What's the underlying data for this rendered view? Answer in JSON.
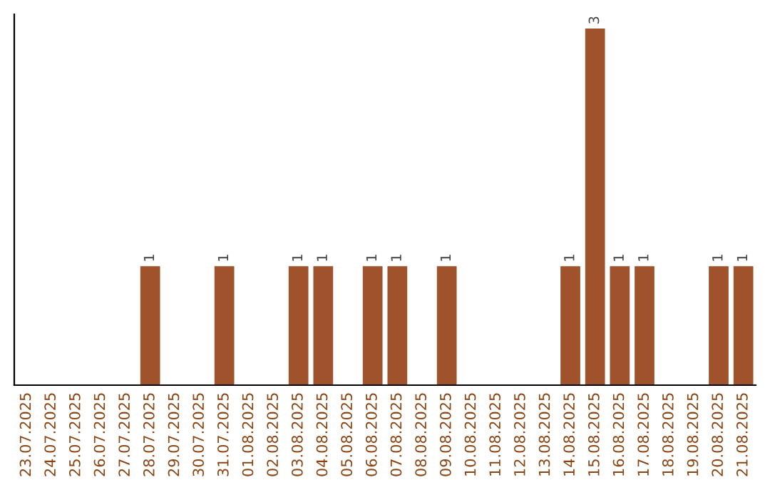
{
  "chart_data": {
    "type": "bar",
    "categories": [
      "23.07.2025",
      "24.07.2025",
      "25.07.2025",
      "26.07.2025",
      "27.07.2025",
      "28.07.2025",
      "29.07.2025",
      "30.07.2025",
      "31.07.2025",
      "01.08.2025",
      "02.08.2025",
      "03.08.2025",
      "04.08.2025",
      "05.08.2025",
      "06.08.2025",
      "07.08.2025",
      "08.08.2025",
      "09.08.2025",
      "10.08.2025",
      "11.08.2025",
      "12.08.2025",
      "13.08.2025",
      "14.08.2025",
      "15.08.2025",
      "16.08.2025",
      "17.08.2025",
      "18.08.2025",
      "19.08.2025",
      "20.08.2025",
      "21.08.2025"
    ],
    "values": [
      0,
      0,
      0,
      0,
      0,
      1,
      0,
      0,
      1,
      0,
      0,
      1,
      1,
      0,
      1,
      1,
      0,
      1,
      0,
      0,
      0,
      0,
      1,
      3,
      1,
      1,
      0,
      0,
      1,
      1
    ],
    "value_labels": [
      null,
      null,
      null,
      null,
      null,
      "1",
      null,
      null,
      "1",
      null,
      null,
      "1",
      "1",
      null,
      "1",
      "1",
      null,
      "1",
      null,
      null,
      null,
      null,
      "1",
      "3",
      "1",
      "1",
      null,
      null,
      "1",
      "1"
    ],
    "color": "#a0522d",
    "tick_labels": "x",
    "grid": false,
    "legend": false
  }
}
